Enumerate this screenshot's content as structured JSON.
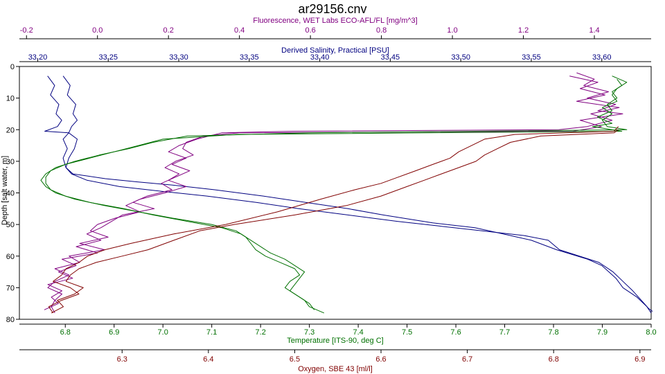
{
  "chart_data": {
    "type": "line",
    "title": "ar29156.cnv",
    "ylabel": "Depth [salt water, m]",
    "ylim": [
      0,
      80
    ],
    "y_ticks": [
      0,
      10,
      20,
      30,
      40,
      50,
      60,
      70,
      80
    ],
    "grid": false,
    "axes": {
      "fluorescence": {
        "label": "Fluorescence, WET Labs ECO-AFL/FL [mg/m^3]",
        "range": [
          -0.22,
          1.56
        ],
        "ticks": [
          "-0.2",
          "0.0",
          "0.2",
          "0.4",
          "0.6",
          "0.8",
          "1.0",
          "1.2",
          "1.4"
        ],
        "color": "#800080"
      },
      "salinity": {
        "label": "Derived Salinity, Practical [PSU]",
        "range": [
          33.187,
          33.635
        ],
        "ticks": [
          "33.20",
          "33.25",
          "33.30",
          "33.35",
          "33.40",
          "33.45",
          "33.50",
          "33.55",
          "33.60"
        ],
        "color": "#000080"
      },
      "temperature": {
        "label": "Temperature [ITS-90, deg C]",
        "range": [
          6.706,
          8.0
        ],
        "ticks": [
          "6.8",
          "6.9",
          "7.0",
          "7.1",
          "7.2",
          "7.3",
          "7.4",
          "7.5",
          "7.6",
          "7.7",
          "7.8",
          "7.9",
          "8.0"
        ],
        "color": "#007000"
      },
      "oxygen": {
        "label": "Oxygen, SBE 43 [ml/l]",
        "range": [
          6.181,
          6.913
        ],
        "ticks": [
          "6.3",
          "6.4",
          "6.5",
          "6.6",
          "6.7",
          "6.8",
          "6.9"
        ],
        "color": "#800000"
      }
    },
    "series": [
      {
        "axis": "salinity",
        "color": "#000080",
        "points": [
          [
            33.207,
            3
          ],
          [
            33.212,
            6
          ],
          [
            33.209,
            9
          ],
          [
            33.215,
            12
          ],
          [
            33.213,
            15
          ],
          [
            33.217,
            17
          ],
          [
            33.214,
            19
          ],
          [
            33.205,
            20.5
          ],
          [
            33.222,
            21
          ],
          [
            33.218,
            23
          ],
          [
            33.221,
            26
          ],
          [
            33.218,
            29
          ],
          [
            33.22,
            32
          ],
          [
            33.225,
            34
          ],
          [
            33.248,
            35.5
          ],
          [
            33.27,
            36.5
          ],
          [
            33.295,
            37.5
          ],
          [
            33.325,
            39
          ],
          [
            33.36,
            41
          ],
          [
            33.39,
            43
          ],
          [
            33.42,
            45
          ],
          [
            33.445,
            47
          ],
          [
            33.48,
            49.5
          ],
          [
            33.51,
            51
          ],
          [
            33.53,
            53
          ],
          [
            33.55,
            55
          ],
          [
            33.568,
            58
          ],
          [
            33.59,
            61
          ],
          [
            33.6,
            63
          ],
          [
            33.61,
            67
          ],
          [
            33.615,
            70
          ],
          [
            33.625,
            73
          ],
          [
            33.632,
            76
          ],
          [
            33.635,
            78
          ]
        ]
      },
      {
        "axis": "salinity",
        "color": "#000080",
        "points": [
          [
            33.218,
            3
          ],
          [
            33.223,
            6
          ],
          [
            33.221,
            9
          ],
          [
            33.227,
            12
          ],
          [
            33.225,
            15
          ],
          [
            33.228,
            17
          ],
          [
            33.224,
            19
          ],
          [
            33.222,
            21
          ],
          [
            33.228,
            23
          ],
          [
            33.226,
            26
          ],
          [
            33.222,
            29
          ],
          [
            33.22,
            32
          ],
          [
            33.224,
            34
          ],
          [
            33.235,
            36
          ],
          [
            33.258,
            38
          ],
          [
            33.288,
            39.5
          ],
          [
            33.32,
            41
          ],
          [
            33.355,
            43
          ],
          [
            33.385,
            45
          ],
          [
            33.42,
            47
          ],
          [
            33.455,
            49
          ],
          [
            33.485,
            50.5
          ],
          [
            33.515,
            52
          ],
          [
            33.545,
            53.5
          ],
          [
            33.562,
            55
          ],
          [
            33.57,
            58
          ],
          [
            33.598,
            62
          ],
          [
            33.608,
            65
          ],
          [
            33.615,
            68
          ],
          [
            33.622,
            71
          ],
          [
            33.628,
            74
          ],
          [
            33.633,
            76.5
          ],
          [
            33.636,
            77.5
          ]
        ]
      },
      {
        "axis": "fluorescence",
        "color": "#800080",
        "points": [
          [
            1.35,
            2
          ],
          [
            1.4,
            4
          ],
          [
            1.37,
            6
          ],
          [
            1.44,
            8
          ],
          [
            1.38,
            10
          ],
          [
            1.46,
            12
          ],
          [
            1.41,
            14
          ],
          [
            1.48,
            15
          ],
          [
            1.36,
            17
          ],
          [
            1.42,
            19
          ],
          [
            1.34,
            20.5
          ],
          [
            0.4,
            21
          ],
          [
            0.3,
            22
          ],
          [
            0.25,
            24
          ],
          [
            0.24,
            26
          ],
          [
            0.27,
            28
          ],
          [
            0.22,
            30
          ],
          [
            0.19,
            32
          ],
          [
            0.23,
            34
          ],
          [
            0.2,
            36
          ],
          [
            0.25,
            38
          ],
          [
            0.19,
            40
          ],
          [
            0.12,
            42
          ],
          [
            0.08,
            44
          ],
          [
            0.12,
            46
          ],
          [
            0.05,
            48
          ],
          [
            0.0,
            50
          ],
          [
            -0.02,
            52
          ],
          [
            0.03,
            54
          ],
          [
            -0.05,
            56
          ],
          [
            0.02,
            58
          ],
          [
            -0.08,
            60
          ],
          [
            -0.05,
            62
          ],
          [
            -0.12,
            64
          ],
          [
            -0.08,
            66
          ],
          [
            -0.12,
            68
          ],
          [
            -0.14,
            70
          ],
          [
            -0.1,
            72
          ],
          [
            -0.12,
            74
          ],
          [
            -0.13,
            76
          ],
          [
            -0.12,
            78
          ]
        ]
      },
      {
        "axis": "fluorescence",
        "color": "#800080",
        "points": [
          [
            1.33,
            3
          ],
          [
            1.41,
            5
          ],
          [
            1.36,
            7
          ],
          [
            1.43,
            9
          ],
          [
            1.35,
            11
          ],
          [
            1.47,
            13
          ],
          [
            1.39,
            15
          ],
          [
            1.45,
            17
          ],
          [
            1.38,
            19
          ],
          [
            1.3,
            20
          ],
          [
            0.55,
            20.5
          ],
          [
            0.35,
            21
          ],
          [
            0.28,
            23
          ],
          [
            0.23,
            25
          ],
          [
            0.2,
            27
          ],
          [
            0.25,
            29
          ],
          [
            0.21,
            31
          ],
          [
            0.26,
            33
          ],
          [
            0.22,
            35
          ],
          [
            0.18,
            37
          ],
          [
            0.21,
            39
          ],
          [
            0.14,
            41
          ],
          [
            0.1,
            43
          ],
          [
            0.16,
            45
          ],
          [
            0.07,
            47
          ],
          [
            0.04,
            49
          ],
          [
            0.01,
            51
          ],
          [
            -0.03,
            53
          ],
          [
            0.01,
            55
          ],
          [
            -0.06,
            57
          ],
          [
            0.0,
            59
          ],
          [
            -0.1,
            61
          ],
          [
            -0.06,
            63
          ],
          [
            -0.11,
            65
          ],
          [
            -0.07,
            67
          ],
          [
            -0.14,
            69
          ],
          [
            -0.1,
            71
          ],
          [
            -0.13,
            73
          ],
          [
            -0.11,
            75
          ],
          [
            -0.15,
            77
          ]
        ]
      },
      {
        "axis": "temperature",
        "color": "#007000",
        "points": [
          [
            7.92,
            3
          ],
          [
            7.95,
            5
          ],
          [
            7.93,
            7
          ],
          [
            7.92,
            9
          ],
          [
            7.93,
            11
          ],
          [
            7.9,
            13
          ],
          [
            7.92,
            15
          ],
          [
            7.9,
            17
          ],
          [
            7.91,
            19
          ],
          [
            7.95,
            20
          ],
          [
            7.3,
            21
          ],
          [
            7.05,
            22
          ],
          [
            6.98,
            24
          ],
          [
            6.93,
            26
          ],
          [
            6.87,
            28
          ],
          [
            6.82,
            30
          ],
          [
            6.78,
            32
          ],
          [
            6.76,
            34
          ],
          [
            6.75,
            36
          ],
          [
            6.76,
            38
          ],
          [
            6.78,
            40
          ],
          [
            6.82,
            42
          ],
          [
            6.88,
            44
          ],
          [
            6.95,
            46
          ],
          [
            7.02,
            48
          ],
          [
            7.1,
            50
          ],
          [
            7.15,
            52
          ],
          [
            7.17,
            54
          ],
          [
            7.18,
            56
          ],
          [
            7.19,
            58
          ],
          [
            7.21,
            60
          ],
          [
            7.24,
            62
          ],
          [
            7.27,
            64
          ],
          [
            7.28,
            66
          ],
          [
            7.26,
            68
          ],
          [
            7.25,
            70
          ],
          [
            7.27,
            72
          ],
          [
            7.29,
            74
          ],
          [
            7.3,
            76
          ],
          [
            7.33,
            78
          ]
        ]
      },
      {
        "axis": "temperature",
        "color": "#007000",
        "points": [
          [
            7.93,
            4
          ],
          [
            7.94,
            6
          ],
          [
            7.92,
            8
          ],
          [
            7.93,
            10
          ],
          [
            7.91,
            12
          ],
          [
            7.92,
            14
          ],
          [
            7.89,
            16
          ],
          [
            7.92,
            18
          ],
          [
            7.88,
            19
          ],
          [
            7.94,
            20.5
          ],
          [
            7.15,
            21.5
          ],
          [
            7.0,
            23
          ],
          [
            6.95,
            25
          ],
          [
            6.9,
            27
          ],
          [
            6.85,
            29
          ],
          [
            6.8,
            31
          ],
          [
            6.77,
            33
          ],
          [
            6.76,
            35
          ],
          [
            6.76,
            37
          ],
          [
            6.77,
            39
          ],
          [
            6.8,
            41
          ],
          [
            6.85,
            43
          ],
          [
            6.92,
            45
          ],
          [
            6.98,
            47
          ],
          [
            7.05,
            49
          ],
          [
            7.12,
            51
          ],
          [
            7.16,
            53
          ],
          [
            7.18,
            55
          ],
          [
            7.2,
            57
          ],
          [
            7.22,
            59
          ],
          [
            7.25,
            61
          ],
          [
            7.27,
            63
          ],
          [
            7.29,
            65
          ],
          [
            7.28,
            67
          ],
          [
            7.27,
            69
          ],
          [
            7.26,
            71
          ],
          [
            7.28,
            73
          ],
          [
            7.3,
            75
          ],
          [
            7.31,
            77
          ]
        ]
      },
      {
        "axis": "oxygen",
        "color": "#800000",
        "points": [
          [
            6.875,
            19
          ],
          [
            6.87,
            20.5
          ],
          [
            6.755,
            21.5
          ],
          [
            6.72,
            23
          ],
          [
            6.705,
            25
          ],
          [
            6.69,
            27
          ],
          [
            6.68,
            29
          ],
          [
            6.66,
            31
          ],
          [
            6.64,
            33
          ],
          [
            6.62,
            35
          ],
          [
            6.6,
            37
          ],
          [
            6.57,
            39
          ],
          [
            6.53,
            42
          ],
          [
            6.48,
            46
          ],
          [
            6.42,
            50
          ],
          [
            6.36,
            53
          ],
          [
            6.31,
            56
          ],
          [
            6.28,
            58
          ],
          [
            6.26,
            60
          ],
          [
            6.25,
            62
          ],
          [
            6.235,
            64
          ],
          [
            6.23,
            66
          ],
          [
            6.22,
            68
          ],
          [
            6.24,
            70
          ],
          [
            6.25,
            72
          ],
          [
            6.23,
            74
          ],
          [
            6.215,
            76
          ],
          [
            6.22,
            78
          ]
        ]
      },
      {
        "axis": "oxygen",
        "color": "#800000",
        "points": [
          [
            6.875,
            20
          ],
          [
            6.87,
            21
          ],
          [
            6.785,
            22
          ],
          [
            6.75,
            24
          ],
          [
            6.735,
            26
          ],
          [
            6.72,
            28
          ],
          [
            6.71,
            30
          ],
          [
            6.69,
            32
          ],
          [
            6.67,
            34
          ],
          [
            6.65,
            36
          ],
          [
            6.63,
            38
          ],
          [
            6.6,
            41
          ],
          [
            6.56,
            44
          ],
          [
            6.5,
            47
          ],
          [
            6.43,
            50
          ],
          [
            6.39,
            52
          ],
          [
            6.36,
            55
          ],
          [
            6.33,
            58
          ],
          [
            6.3,
            60
          ],
          [
            6.27,
            62
          ],
          [
            6.25,
            64
          ],
          [
            6.24,
            66
          ],
          [
            6.235,
            68
          ],
          [
            6.255,
            70
          ],
          [
            6.245,
            72
          ],
          [
            6.225,
            74
          ],
          [
            6.232,
            76
          ],
          [
            6.218,
            78
          ]
        ]
      }
    ]
  }
}
